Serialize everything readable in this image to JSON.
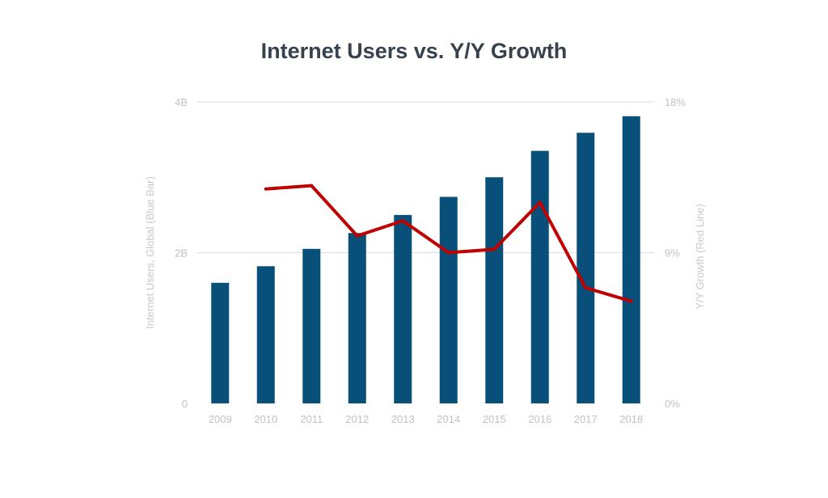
{
  "chart_data": {
    "type": "bar+line",
    "title": "Internet Users vs. Y/Y Growth",
    "categories": [
      "2009",
      "2010",
      "2011",
      "2012",
      "2013",
      "2014",
      "2015",
      "2016",
      "2017",
      "2018"
    ],
    "series": [
      {
        "axis": "left",
        "type": "bar",
        "color": "#08507a",
        "values": [
          1.6,
          1.82,
          2.05,
          2.26,
          2.5,
          2.74,
          3.0,
          3.35,
          3.59,
          3.81
        ]
      },
      {
        "axis": "right",
        "type": "line",
        "color": "#c00000",
        "values": [
          null,
          12.8,
          13.0,
          10.0,
          10.9,
          9.0,
          9.2,
          12.0,
          6.9,
          6.1
        ]
      }
    ],
    "ylabel": "Internet Users, Global (Blue Bar)",
    "y2label": "Y/Y Growth (Red Line)",
    "ylim": [
      0,
      4
    ],
    "y2lim": [
      0,
      18
    ],
    "yticks": [
      {
        "value": 0,
        "label": "0"
      },
      {
        "value": 2,
        "label": "2B"
      },
      {
        "value": 4,
        "label": "4B"
      }
    ],
    "y2ticks": [
      {
        "value": 0,
        "label": "0%"
      },
      {
        "value": 9,
        "label": "9%"
      },
      {
        "value": 18,
        "label": "18%"
      }
    ],
    "grid": true,
    "legend": "none"
  }
}
